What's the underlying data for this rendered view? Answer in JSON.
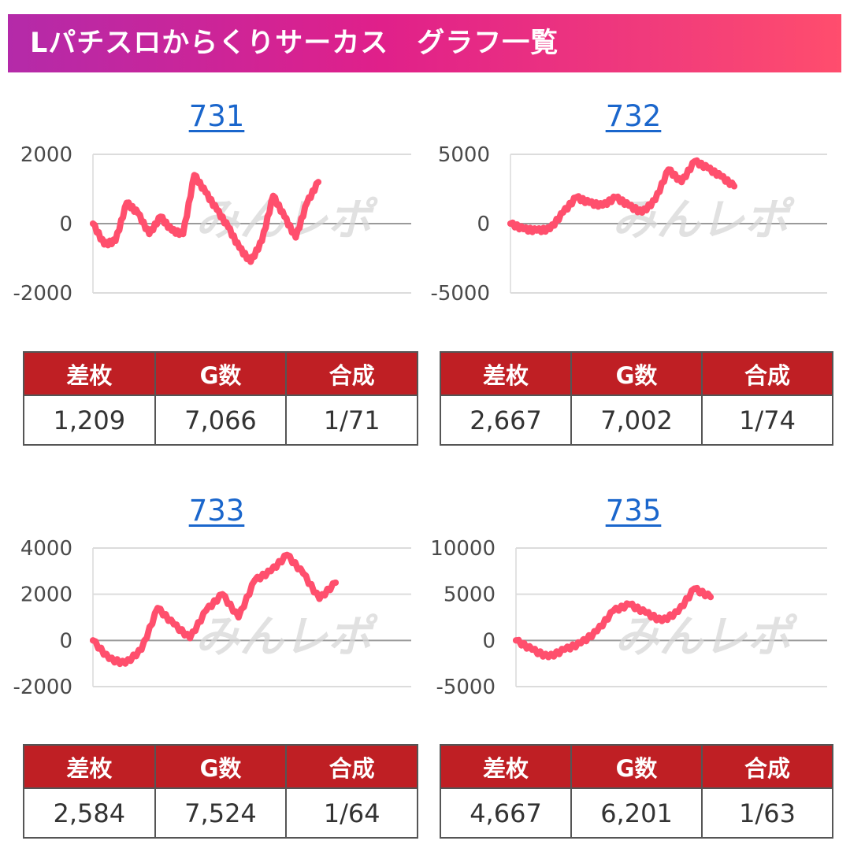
{
  "header": {
    "title": "Lパチスロからくりサーカス　グラフ一覧"
  },
  "colors": {
    "line": "#ff4f6d",
    "header_bg": "#bf1f24",
    "link": "#1a66cc"
  },
  "columns": [
    "差枚",
    "G数",
    "合成"
  ],
  "chart_data": [
    {
      "type": "line",
      "title": "731",
      "ylim": [
        -2000,
        2000
      ],
      "yticks": [
        "2000",
        "0",
        "-2000"
      ],
      "ytick_values": [
        2000,
        0,
        -2000
      ],
      "grid": true,
      "watermark": "みんレポ",
      "series": [
        {
          "values": [
            0,
            -600,
            -500,
            600,
            300,
            -300,
            200,
            -200,
            -300,
            1400,
            900,
            400,
            -100,
            -700,
            -1100,
            -500,
            800,
            200,
            -400,
            600,
            1200
          ]
        }
      ],
      "stats": {
        "diff": "1,209",
        "games": "7,066",
        "rate": "1/71"
      }
    },
    {
      "type": "line",
      "title": "732",
      "ylim": [
        -5000,
        5000
      ],
      "yticks": [
        "5000",
        "0",
        "-5000"
      ],
      "ytick_values": [
        5000,
        0,
        -5000
      ],
      "grid": true,
      "watermark": "みんレポ",
      "series": [
        {
          "values": [
            0,
            -400,
            -500,
            -400,
            800,
            1900,
            1500,
            1300,
            1900,
            1300,
            800,
            1700,
            3900,
            3000,
            4500,
            4000,
            3400,
            2700
          ]
        }
      ],
      "stats": {
        "diff": "2,667",
        "games": "7,002",
        "rate": "1/74"
      }
    },
    {
      "type": "line",
      "title": "733",
      "ylim": [
        -2000,
        4000
      ],
      "yticks": [
        "4000",
        "2000",
        "0",
        "-2000"
      ],
      "ytick_values": [
        4000,
        2000,
        0,
        -2000
      ],
      "grid": true,
      "watermark": "みんレポ",
      "series": [
        {
          "values": [
            0,
            -800,
            -1000,
            -400,
            1400,
            700,
            100,
            1300,
            2000,
            1000,
            2600,
            3000,
            3700,
            2900,
            1800,
            2500
          ]
        }
      ],
      "stats": {
        "diff": "2,584",
        "games": "7,524",
        "rate": "1/64"
      }
    },
    {
      "type": "line",
      "title": "735",
      "ylim": [
        -5000,
        10000
      ],
      "yticks": [
        "10000",
        "5000",
        "0",
        "-5000"
      ],
      "ytick_values": [
        10000,
        5000,
        0,
        -5000
      ],
      "grid": true,
      "watermark": "みんレポ",
      "series": [
        {
          "values": [
            0,
            -1000,
            -1800,
            -1000,
            -300,
            1000,
            3200,
            3900,
            3000,
            2100,
            3100,
            5600,
            4700
          ]
        }
      ],
      "stats": {
        "diff": "4,667",
        "games": "6,201",
        "rate": "1/63"
      }
    }
  ]
}
